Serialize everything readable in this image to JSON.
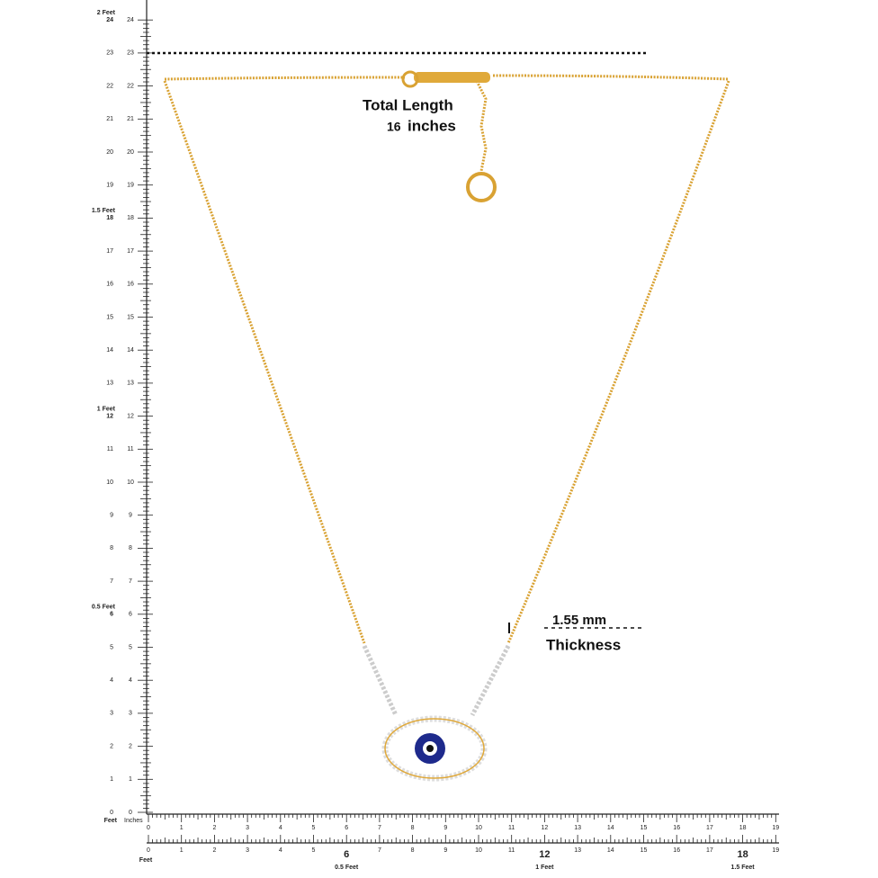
{
  "annotation": {
    "total_length": "Total  Length",
    "length_value": "16",
    "length_unit": "inches",
    "thickness_value": "1.55 mm",
    "thickness_label": "Thickness"
  },
  "left_ruler": {
    "labels": [
      0,
      1,
      2,
      3,
      4,
      5,
      6,
      7,
      8,
      9,
      10,
      11,
      12,
      13,
      14,
      15,
      16,
      17,
      18,
      19,
      20,
      21,
      22,
      23,
      24
    ],
    "feet_labels": [
      "0.5 Feet",
      "1 Feet",
      "1.5 Feet",
      "2 Feet"
    ],
    "unit_labels": [
      "Feet",
      "Inches"
    ]
  },
  "bottom_ruler": {
    "labels": [
      0,
      1,
      2,
      3,
      4,
      5,
      6,
      7,
      8,
      9,
      10,
      11,
      12,
      13,
      14,
      15,
      16,
      17,
      18,
      19
    ],
    "scale_labels": [
      0,
      1,
      2,
      3,
      4,
      5,
      6,
      7,
      8,
      9,
      10,
      11,
      12,
      13,
      14,
      15,
      16,
      17,
      18,
      19
    ],
    "feet_labels": [
      "0.5 Feet",
      "1 Feet",
      "1.5 Feet"
    ],
    "unit_label": "Feet"
  }
}
